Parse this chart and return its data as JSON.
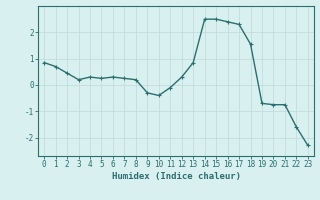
{
  "x": [
    0,
    1,
    2,
    3,
    4,
    5,
    6,
    7,
    8,
    9,
    10,
    11,
    12,
    13,
    14,
    15,
    16,
    17,
    18,
    19,
    20,
    21,
    22,
    23
  ],
  "y": [
    0.85,
    0.7,
    0.45,
    0.2,
    0.3,
    0.25,
    0.3,
    0.25,
    0.2,
    -0.3,
    -0.4,
    -0.1,
    0.3,
    0.85,
    2.5,
    2.5,
    2.4,
    2.3,
    1.55,
    -0.7,
    -0.75,
    -0.75,
    -1.6,
    -2.3
  ],
  "line_color": "#2d6e6e",
  "marker": "+",
  "marker_size": 3,
  "marker_linewidth": 0.8,
  "background_color": "#d8f0f0",
  "grid_color": "#c0d8d8",
  "xlabel": "Humidex (Indice chaleur)",
  "xlim": [
    -0.5,
    23.5
  ],
  "ylim": [
    -2.7,
    3.0
  ],
  "yticks": [
    -2,
    -1,
    0,
    1,
    2
  ],
  "xticks": [
    0,
    1,
    2,
    3,
    4,
    5,
    6,
    7,
    8,
    9,
    10,
    11,
    12,
    13,
    14,
    15,
    16,
    17,
    18,
    19,
    20,
    21,
    22,
    23
  ],
  "tick_fontsize": 5.5,
  "xlabel_fontsize": 6.5,
  "tick_color": "#2d6e6e",
  "axis_color": "#2d6e6e",
  "linewidth": 1.0
}
